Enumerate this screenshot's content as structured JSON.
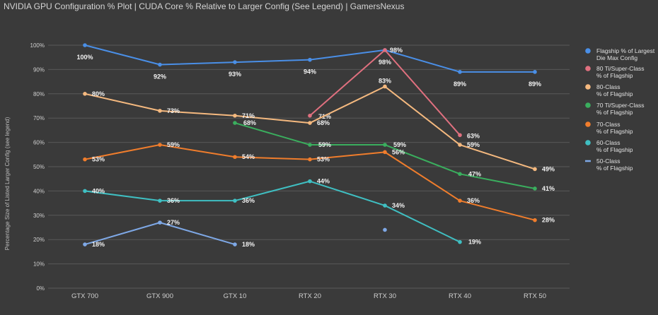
{
  "chart_data": {
    "type": "line",
    "title": "NVIDIA GPU Configuration % Plot | CUDA Core % Relative to Larger Config (See Legend) | GamersNexus",
    "ylabel": "Percentage Size of Listed Larger Config (see legend)",
    "xlabel": "",
    "categories": [
      "GTX 700",
      "GTX 900",
      "GTX 10",
      "RTX 20",
      "RTX 30",
      "RTX 40",
      "RTX 50"
    ],
    "ylim": [
      0,
      100
    ],
    "yticks": [
      0,
      10,
      20,
      30,
      40,
      50,
      60,
      70,
      80,
      90,
      100
    ],
    "ytick_labels": [
      "0%",
      "10%",
      "20%",
      "30%",
      "40%",
      "50%",
      "60%",
      "70%",
      "80%",
      "90%",
      "100%"
    ],
    "series": [
      {
        "name": "Flagship % of Largest Die Max Config",
        "color": "#4a8fe7",
        "values": [
          100,
          92,
          93,
          94,
          98,
          89,
          89
        ],
        "labels": [
          "100%",
          "92%",
          "93%",
          "94%",
          "98%",
          "89%",
          "89%"
        ]
      },
      {
        "name": "80 Ti/Super-Class % of Flagship",
        "color": "#e0707f",
        "values": [
          null,
          null,
          null,
          71,
          98,
          63,
          null
        ],
        "labels": [
          null,
          null,
          null,
          "71%",
          "98%",
          "63%",
          null
        ]
      },
      {
        "name": "80-Class % of Flagship",
        "color": "#f5b97f",
        "values": [
          80,
          73,
          71,
          68,
          83,
          59,
          49
        ],
        "labels": [
          "80%",
          "73%",
          "71%",
          "68%",
          "83%",
          "59%",
          "49%"
        ]
      },
      {
        "name": "70 Ti/Super-Class % of Flagship",
        "color": "#3aae5e",
        "values": [
          null,
          null,
          68,
          59,
          59,
          47,
          41
        ],
        "labels": [
          null,
          null,
          "68%",
          "59%",
          "59%",
          "47%",
          "41%"
        ]
      },
      {
        "name": "70-Class % of Flagship",
        "color": "#f07d2c",
        "values": [
          53,
          59,
          54,
          53,
          56,
          36,
          28
        ],
        "labels": [
          "53%",
          "59%",
          "54%",
          "53%",
          "56%",
          "36%",
          "28%"
        ]
      },
      {
        "name": "60-Class % of Flagship",
        "color": "#3fbfc2",
        "values": [
          40,
          36,
          36,
          44,
          34,
          19,
          null
        ],
        "labels": [
          "40%",
          "36%",
          "36%",
          "44%",
          "34%",
          "19%",
          null
        ]
      },
      {
        "name": "50-Class % of Flagship",
        "color": "#7ea8e6",
        "legend_marker": "line",
        "values": [
          18,
          27,
          18,
          null,
          24,
          null,
          null
        ],
        "labels": [
          "18%",
          "27%",
          "18%",
          null,
          null,
          null,
          null
        ]
      }
    ],
    "legend": [
      {
        "line1": "Flagship % of Largest",
        "line2": "Die Max Config"
      },
      {
        "line1": "80 Ti/Super-Class",
        "line2": "% of Flagship"
      },
      {
        "line1": "80-Class",
        "line2": "% of Flagship"
      },
      {
        "line1": "70 Ti/Super-Class",
        "line2": "% of Flagship"
      },
      {
        "line1": "70-Class",
        "line2": "% of Flagship"
      },
      {
        "line1": "60-Class",
        "line2": "% of Flagship"
      },
      {
        "line1": "50-Class",
        "line2": "% of Flagship"
      }
    ],
    "legend_position": "right",
    "grid": true
  }
}
